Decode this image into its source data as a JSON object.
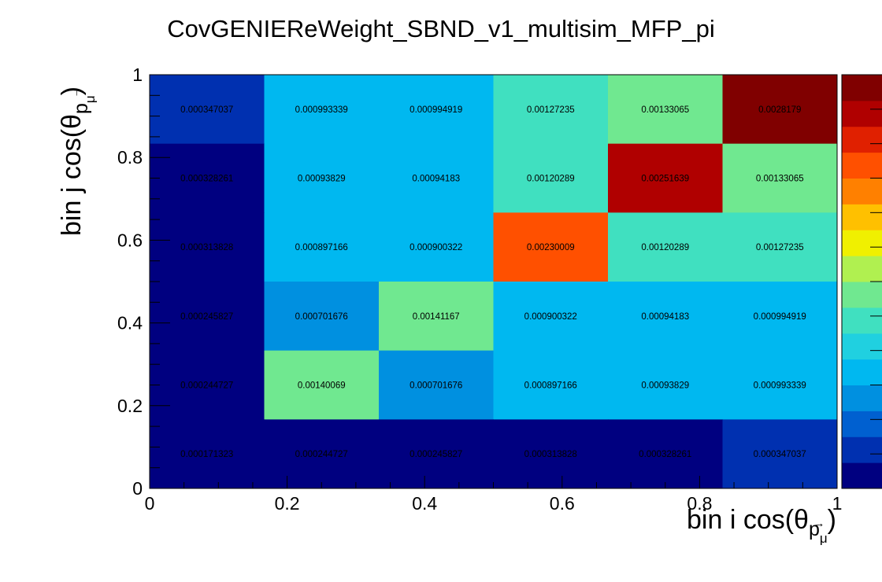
{
  "chart_data": {
    "type": "heatmap",
    "title": "CovGENIEReWeight_SBND_v1_multisim_MFP_pi",
    "xlabel": {
      "main": "bin i cos(θ",
      "sub": "p",
      "subsub": "μ",
      "close": ")"
    },
    "ylabel": {
      "main": "bin j cos(θ",
      "sub": "p",
      "subsub": "μ",
      "close": ")"
    },
    "xlim": [
      0,
      1
    ],
    "ylim": [
      0,
      1
    ],
    "nx": 6,
    "ny": 6,
    "xticks": [
      {
        "value": 0,
        "label": "0"
      },
      {
        "value": 0.2,
        "label": "0.2"
      },
      {
        "value": 0.4,
        "label": "0.4"
      },
      {
        "value": 0.6,
        "label": "0.6"
      },
      {
        "value": 0.8,
        "label": "0.8"
      },
      {
        "value": 1,
        "label": "1"
      }
    ],
    "yticks": [
      {
        "value": 0,
        "label": "0"
      },
      {
        "value": 0.2,
        "label": "0.2"
      },
      {
        "value": 0.4,
        "label": "0.4"
      },
      {
        "value": 0.6,
        "label": "0.6"
      },
      {
        "value": 0.8,
        "label": "0.8"
      },
      {
        "value": 1,
        "label": "1"
      }
    ],
    "zlim": [
      0.000171323,
      0.0028179
    ],
    "colorbar_labels_visible": false,
    "rows_from_top": [
      [
        "0.000347037",
        "0.000993339",
        "0.000994919",
        "0.00127235",
        "0.00133065",
        "0.0028179"
      ],
      [
        "0.000328261",
        "0.00093829",
        "0.00094183",
        "0.00120289",
        "0.00251639",
        "0.00133065"
      ],
      [
        "0.000313828",
        "0.000897166",
        "0.000900322",
        "0.00230009",
        "0.00120289",
        "0.00127235"
      ],
      [
        "0.000245827",
        "0.000701676",
        "0.00141167",
        "0.000900322",
        "0.00094183",
        "0.000994919"
      ],
      [
        "0.000244727",
        "0.00140069",
        "0.000701676",
        "0.000897166",
        "0.00093829",
        "0.000993339"
      ],
      [
        "0.000171323",
        "0.000244727",
        "0.000245827",
        "0.000313828",
        "0.000328261",
        "0.000347037"
      ]
    ],
    "palette": [
      "#000080",
      "#0030b0",
      "#0060d0",
      "#0090e0",
      "#00b8f0",
      "#20d0e0",
      "#40e0c0",
      "#70e890",
      "#b0f050",
      "#f0f000",
      "#ffc000",
      "#ff8000",
      "#ff5000",
      "#e02000",
      "#b00000",
      "#800000"
    ]
  }
}
